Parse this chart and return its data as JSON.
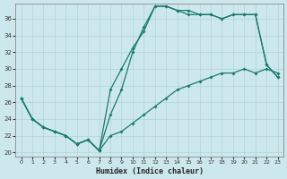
{
  "background_color": "#cde8ec",
  "grid_color": "#b0d4d8",
  "line_color": "#1a7a6e",
  "xlabel": "Humidex (Indice chaleur)",
  "xlim": [
    -0.5,
    23.5
  ],
  "ylim": [
    19.5,
    37.8
  ],
  "yticks": [
    20,
    22,
    24,
    26,
    28,
    30,
    32,
    34,
    36
  ],
  "xticks": [
    0,
    1,
    2,
    3,
    4,
    5,
    6,
    7,
    8,
    9,
    10,
    11,
    12,
    13,
    14,
    15,
    16,
    17,
    18,
    19,
    20,
    21,
    22,
    23
  ],
  "line1_x": [
    0,
    1,
    2,
    3,
    4,
    5,
    6,
    7,
    8,
    9,
    10,
    11,
    12,
    13,
    14,
    15,
    16,
    17,
    18,
    19,
    20,
    21,
    22,
    23
  ],
  "line1_y": [
    26.5,
    24.0,
    23.0,
    22.5,
    22.0,
    21.0,
    21.5,
    20.2,
    27.5,
    30.0,
    32.5,
    34.5,
    37.5,
    37.5,
    37.0,
    37.0,
    36.5,
    36.5,
    36.0,
    36.5,
    36.5,
    36.5,
    30.5,
    29.0
  ],
  "line2_x": [
    0,
    1,
    2,
    3,
    4,
    5,
    6,
    7,
    8,
    9,
    10,
    11,
    12,
    13,
    14,
    15,
    16,
    17,
    18,
    19,
    20,
    21,
    22,
    23
  ],
  "line2_y": [
    26.5,
    24.0,
    23.0,
    22.5,
    22.0,
    21.0,
    21.5,
    20.2,
    24.5,
    27.5,
    32.0,
    35.0,
    37.5,
    37.5,
    37.0,
    36.5,
    36.5,
    36.5,
    36.0,
    36.5,
    36.5,
    36.5,
    30.5,
    29.0
  ],
  "line3_x": [
    0,
    1,
    2,
    3,
    4,
    5,
    6,
    7,
    8,
    9,
    10,
    11,
    12,
    13,
    14,
    15,
    16,
    17,
    18,
    19,
    20,
    21,
    22,
    23
  ],
  "line3_y": [
    26.5,
    24.0,
    23.0,
    22.5,
    22.0,
    21.0,
    21.5,
    20.2,
    22.0,
    22.5,
    23.5,
    24.5,
    25.5,
    26.5,
    27.5,
    28.0,
    28.5,
    29.0,
    29.5,
    29.5,
    30.0,
    29.5,
    30.0,
    29.5
  ]
}
